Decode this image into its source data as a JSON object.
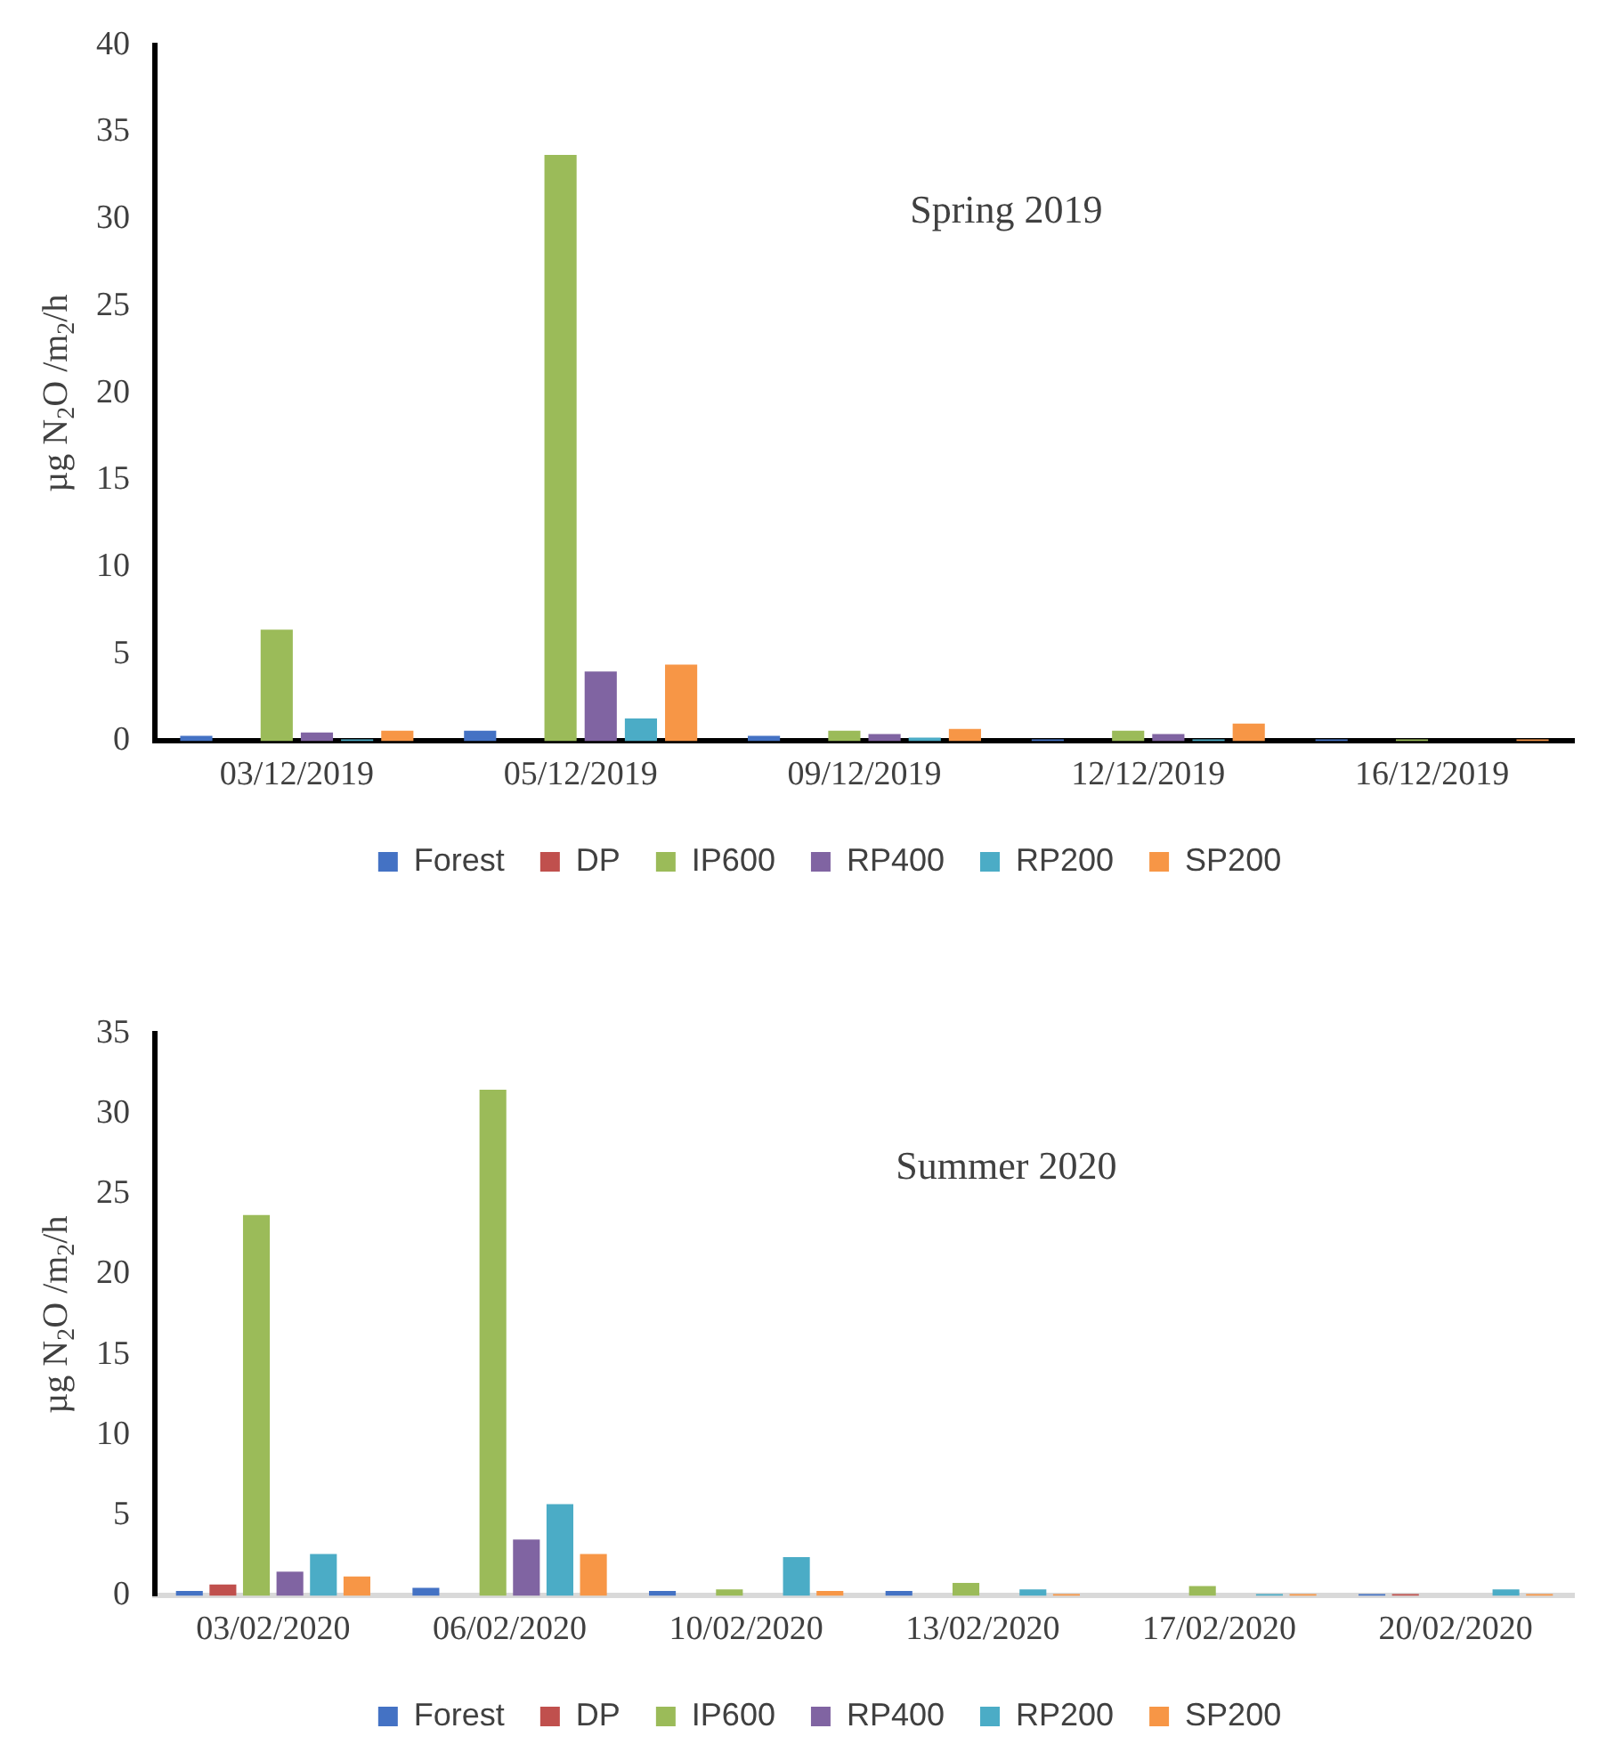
{
  "chart_data": [
    {
      "type": "bar",
      "title": "Spring 2019",
      "ylabel": "µg N$_{2}$O /m$_{2}$/h",
      "categories": [
        "03/12/2019",
        "05/12/2019",
        "09/12/2019",
        "12/12/2019",
        "16/12/2019"
      ],
      "series": [
        {
          "name": "Forest",
          "color": "#4472c4",
          "values": [
            0.3,
            0.6,
            0.3,
            0.1,
            0.1
          ]
        },
        {
          "name": "DP",
          "color": "#c0504d",
          "values": [
            0,
            0,
            0,
            0,
            0
          ]
        },
        {
          "name": "IP600",
          "color": "#9bbb59",
          "values": [
            6.4,
            33.7,
            0.6,
            0.6,
            0.1
          ]
        },
        {
          "name": "RP400",
          "color": "#8064a2",
          "values": [
            0.5,
            4.0,
            0.4,
            0.4,
            0
          ]
        },
        {
          "name": "RP200",
          "color": "#4bacc6",
          "values": [
            0.1,
            1.3,
            0.2,
            0.1,
            0
          ]
        },
        {
          "name": "SP200",
          "color": "#f79646",
          "values": [
            0.6,
            4.4,
            0.7,
            1.0,
            0.1
          ]
        }
      ],
      "ylim": [
        0,
        40
      ],
      "yticks": [
        0,
        5,
        10,
        15,
        20,
        25,
        30,
        35,
        40
      ],
      "grid": false,
      "legend": "bottom"
    },
    {
      "type": "bar",
      "title": "Summer 2020",
      "ylabel": "µg N$_{2}$O /m$_{2}$/h",
      "categories": [
        "03/02/2020",
        "06/02/2020",
        "10/02/2020",
        "13/02/2020",
        "17/02/2020",
        "20/02/2020"
      ],
      "series": [
        {
          "name": "Forest",
          "color": "#4472c4",
          "values": [
            0.3,
            0.5,
            0.3,
            0.3,
            0,
            0.1
          ]
        },
        {
          "name": "DP",
          "color": "#c0504d",
          "values": [
            0.7,
            0,
            0,
            0,
            0,
            0.1
          ]
        },
        {
          "name": "IP600",
          "color": "#9bbb59",
          "values": [
            23.7,
            31.5,
            0.4,
            0.8,
            0.6,
            0
          ]
        },
        {
          "name": "RP400",
          "color": "#8064a2",
          "values": [
            1.5,
            3.5,
            0,
            0,
            0,
            0
          ]
        },
        {
          "name": "RP200",
          "color": "#4bacc6",
          "values": [
            2.6,
            5.7,
            2.4,
            0.4,
            0.1,
            0.4
          ]
        },
        {
          "name": "SP200",
          "color": "#f79646",
          "values": [
            1.2,
            2.6,
            0.3,
            0.1,
            0.1,
            0.1
          ]
        }
      ],
      "ylim": [
        0,
        35
      ],
      "yticks": [
        0,
        5,
        10,
        15,
        20,
        25,
        30,
        35
      ],
      "grid": false,
      "legend": "bottom"
    }
  ]
}
